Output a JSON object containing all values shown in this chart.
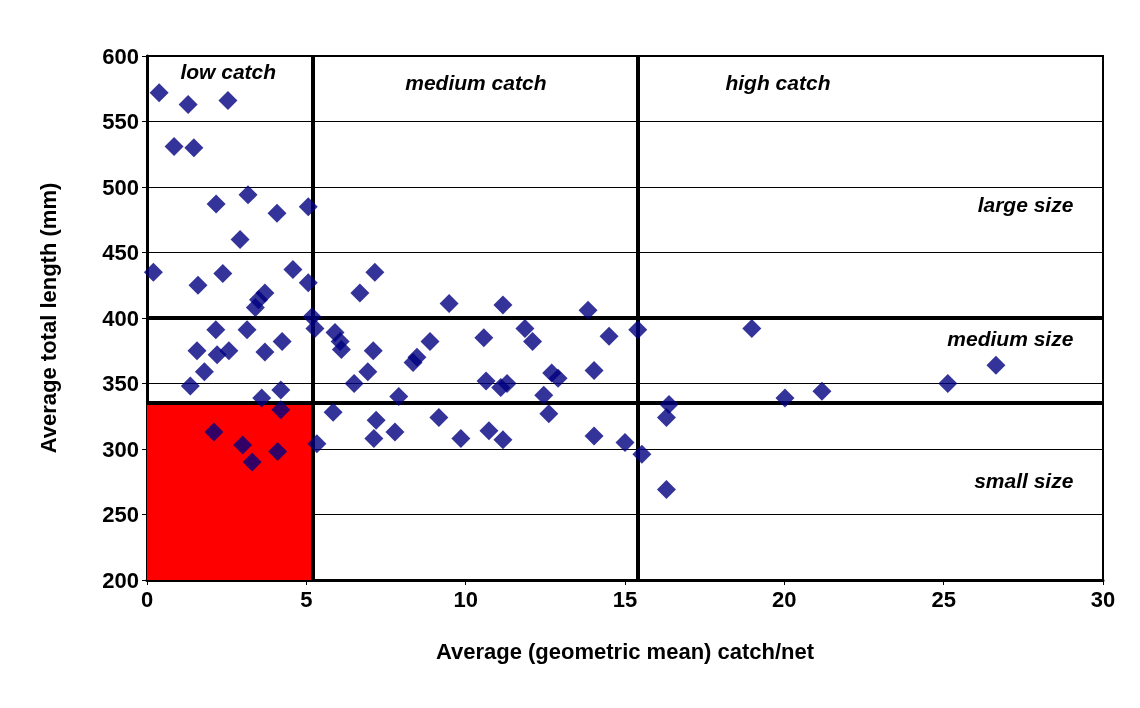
{
  "chart_data": {
    "type": "scatter",
    "xlabel": "Average (geometric mean) catch/net",
    "ylabel": "Average total length (mm)",
    "xlim": [
      0,
      30
    ],
    "xticks": [
      0,
      5,
      10,
      15,
      20,
      25,
      30
    ],
    "ylim": [
      200,
      600
    ],
    "yticks": [
      200,
      250,
      300,
      350,
      400,
      450,
      500,
      550,
      600
    ],
    "grid": "y",
    "marker": "diamond",
    "ref_lines": [
      {
        "axis": "x",
        "value": 5.2,
        "label": null,
        "color": "#000000"
      },
      {
        "axis": "x",
        "value": 15.4,
        "label": null,
        "color": "#000000"
      },
      {
        "axis": "y",
        "value": 400,
        "label": null,
        "color": "#000000"
      },
      {
        "axis": "y",
        "value": 335,
        "label": null,
        "color": "#000000"
      }
    ],
    "bands": [
      {
        "axis": "x",
        "from": 0,
        "to": 5.2,
        "label": null,
        "color": "#ff0000"
      }
    ],
    "annotations": [
      "low catch",
      "medium catch",
      "high catch",
      "large size",
      "medium size",
      "small size"
    ],
    "series": [
      {
        "color": "#000080",
        "x": [
          0.38,
          1.29,
          2.54,
          0.85,
          1.47,
          0.2,
          2.17,
          3.17,
          4.08,
          2.92,
          2.38,
          5.06,
          1.6,
          4.58,
          5.06,
          3.7,
          3.5,
          3.4,
          5.18,
          5.27,
          2.16,
          3.14,
          4.24,
          1.57,
          2.2,
          2.57,
          3.7,
          1.8,
          1.36,
          3.6,
          4.2,
          2.1,
          3.0,
          3.3,
          4.1,
          4.2,
          5.33,
          7.15,
          6.68,
          9.48,
          11.17,
          13.84,
          5.9,
          6.06,
          6.1,
          7.1,
          8.88,
          8.47,
          8.35,
          10.57,
          11.86,
          12.1,
          14.5,
          15.4,
          6.93,
          6.5,
          7.9,
          10.64,
          11.1,
          11.3,
          12.7,
          12.9,
          14.03,
          12.45,
          5.84,
          7.19,
          7.12,
          7.78,
          9.16,
          9.85,
          10.73,
          11.17,
          12.61,
          14.03,
          15.0,
          15.53,
          18.98,
          16.38,
          16.3,
          20.02,
          21.18,
          25.13,
          26.64,
          16.3
        ],
        "values": [
          572,
          563,
          566,
          531,
          530,
          435,
          487,
          494,
          480,
          460,
          434,
          485,
          425,
          437,
          427,
          419,
          414,
          408,
          401,
          392,
          391,
          391,
          382,
          375,
          372,
          375,
          374,
          359,
          348,
          339,
          345,
          313,
          303,
          290,
          298,
          330,
          304,
          435,
          419,
          411,
          410,
          406,
          389,
          382,
          376,
          375,
          382,
          370,
          366,
          385,
          392,
          382,
          386,
          391,
          359,
          350,
          340,
          352,
          347,
          350,
          358,
          354,
          360,
          341,
          328,
          322,
          308,
          313,
          324,
          308,
          314,
          307,
          327,
          310,
          305,
          296,
          392,
          334,
          324,
          339,
          344,
          350,
          364,
          269
        ]
      }
    ]
  }
}
